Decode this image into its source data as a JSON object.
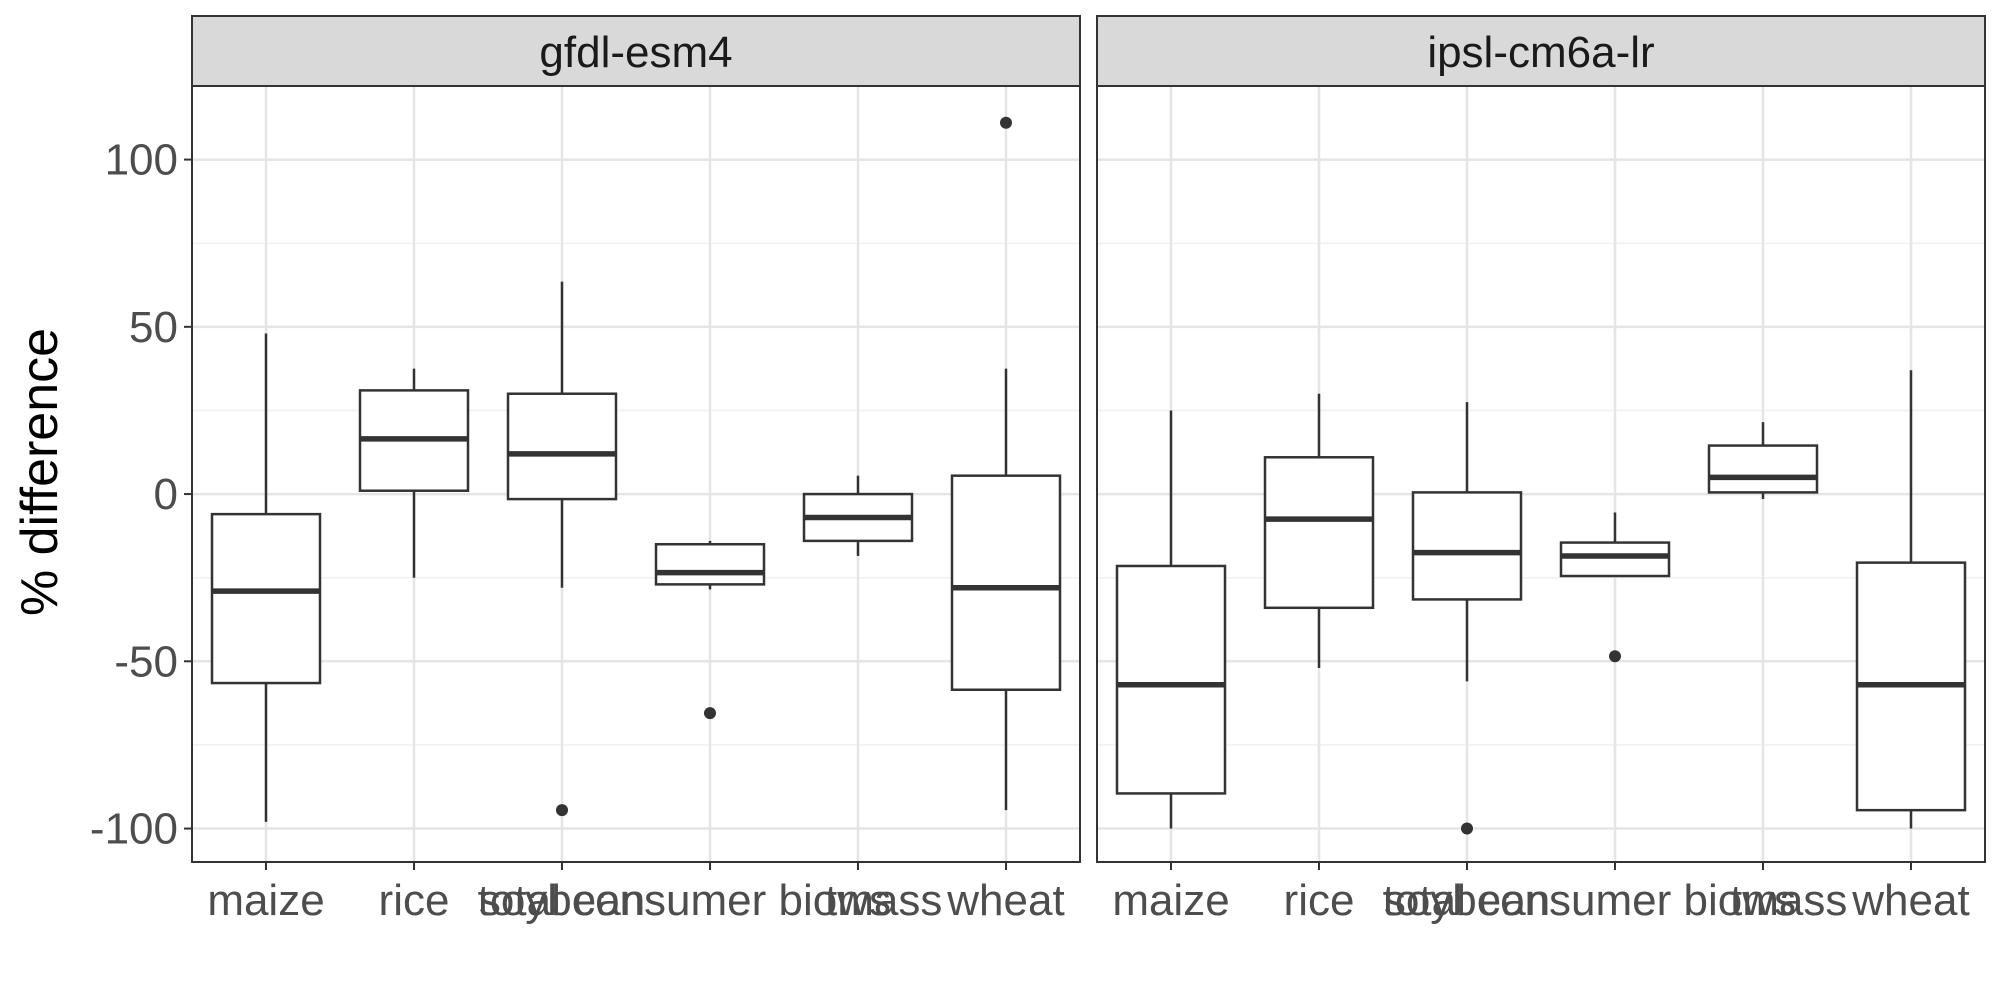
{
  "chart_data": {
    "type": "boxplot",
    "ylabel": "% difference",
    "xlabel": "",
    "ylim": [
      -110,
      122
    ],
    "yticks": [
      -100,
      -50,
      0,
      50,
      100
    ],
    "grid": true,
    "categories": [
      "maize",
      "rice",
      "soybean",
      "total consumer biomass",
      "tws",
      "wheat"
    ],
    "panels": [
      {
        "title": "gfdl-esm4",
        "boxes": [
          {
            "category": "maize",
            "whisker_low": -98,
            "q1": -56.5,
            "median": -29,
            "q3": -6,
            "whisker_high": 48,
            "outliers": []
          },
          {
            "category": "rice",
            "whisker_low": -25,
            "q1": 1,
            "median": 16.5,
            "q3": 31,
            "whisker_high": 37.5,
            "outliers": []
          },
          {
            "category": "soybean",
            "whisker_low": -28,
            "q1": -1.5,
            "median": 12,
            "q3": 30,
            "whisker_high": 63.5,
            "outliers": [
              -94.5
            ]
          },
          {
            "category": "total consumer biomass",
            "whisker_low": -28.5,
            "q1": -27,
            "median": -23.5,
            "q3": -15,
            "whisker_high": -14,
            "outliers": [
              -65.5
            ]
          },
          {
            "category": "tws",
            "whisker_low": -18.5,
            "q1": -14,
            "median": -7,
            "q3": 0,
            "whisker_high": 5.5,
            "outliers": []
          },
          {
            "category": "wheat",
            "whisker_low": -94.5,
            "q1": -58.5,
            "median": -28,
            "q3": 5.5,
            "whisker_high": 37.5,
            "outliers": [
              111
            ]
          }
        ]
      },
      {
        "title": "ipsl-cm6a-lr",
        "boxes": [
          {
            "category": "maize",
            "whisker_low": -100,
            "q1": -89.5,
            "median": -57,
            "q3": -21.5,
            "whisker_high": 25,
            "outliers": []
          },
          {
            "category": "rice",
            "whisker_low": -52,
            "q1": -34,
            "median": -7.5,
            "q3": 11,
            "whisker_high": 30,
            "outliers": []
          },
          {
            "category": "soybean",
            "whisker_low": -56,
            "q1": -31.5,
            "median": -17.5,
            "q3": 0.5,
            "whisker_high": 27.5,
            "outliers": [
              -100
            ]
          },
          {
            "category": "total consumer biomass",
            "whisker_low": -24.5,
            "q1": -24.5,
            "median": -18.5,
            "q3": -14.5,
            "whisker_high": -5.5,
            "outliers": [
              -48.5
            ]
          },
          {
            "category": "tws",
            "whisker_low": -1.5,
            "q1": 0.5,
            "median": 5,
            "q3": 14.5,
            "whisker_high": 21.5,
            "outliers": []
          },
          {
            "category": "wheat",
            "whisker_low": -100,
            "q1": -94.5,
            "median": -57,
            "q3": -20.5,
            "whisker_high": 37,
            "outliers": []
          }
        ]
      }
    ]
  }
}
